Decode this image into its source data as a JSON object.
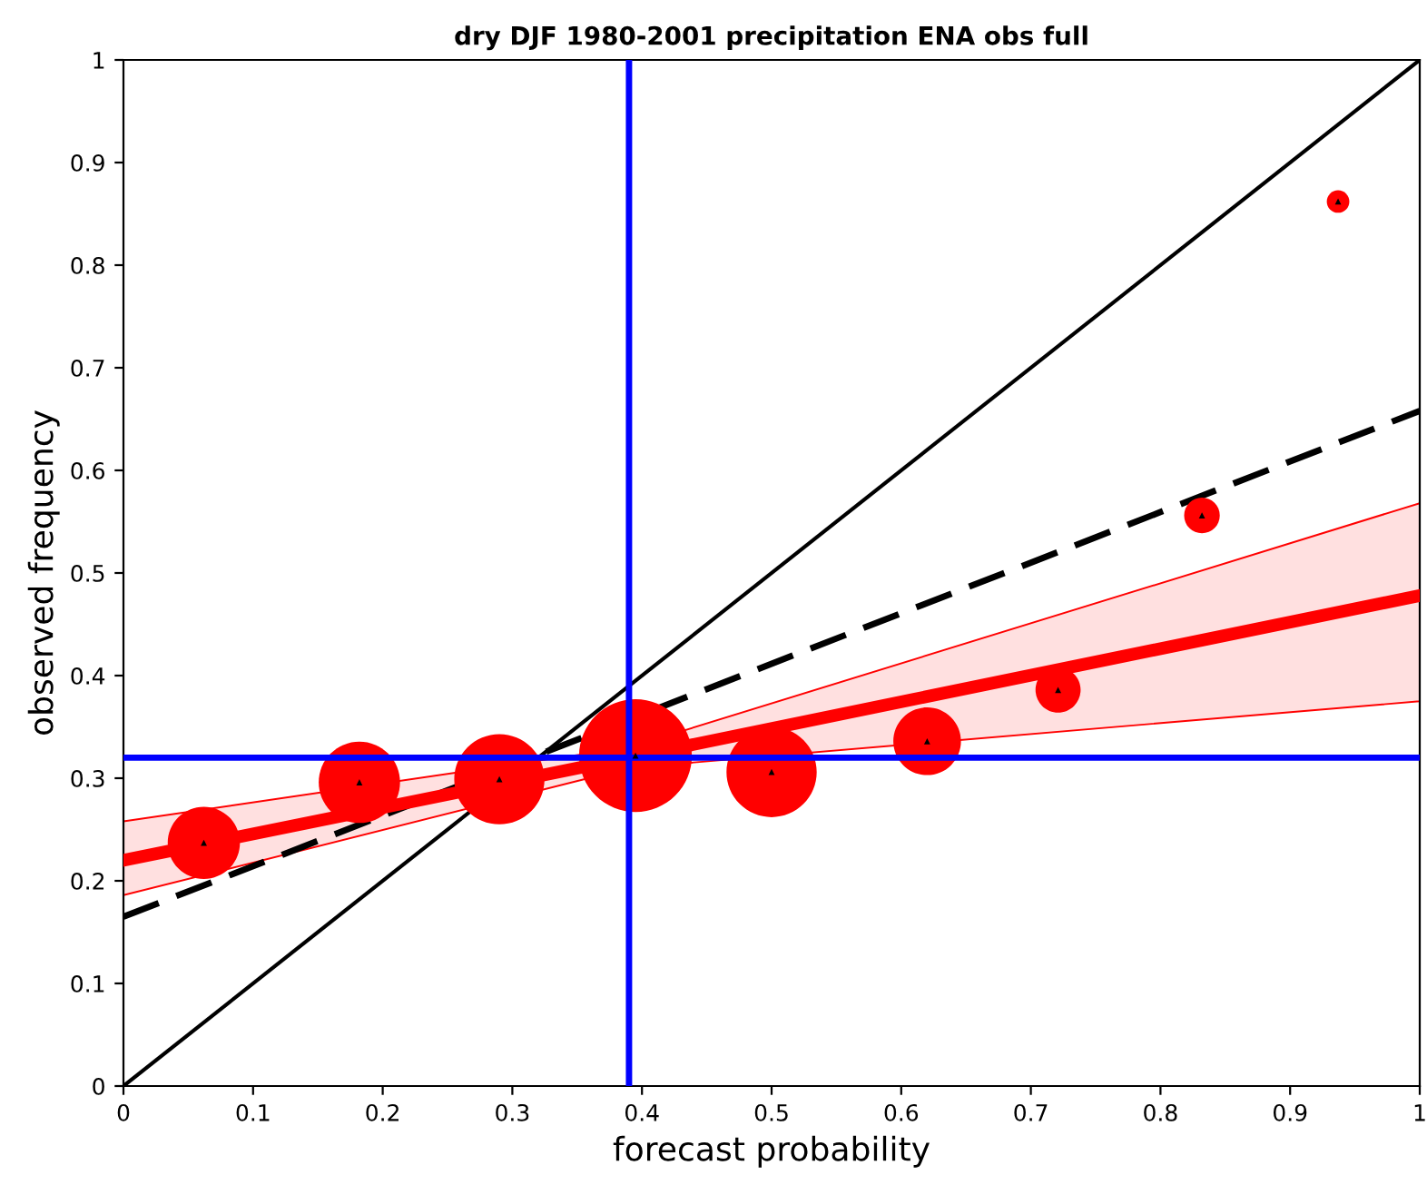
{
  "chart_data": {
    "type": "bubble",
    "title": "dry DJF 1980-2001 precipitation ENA obs full",
    "xlabel": "forecast probability",
    "ylabel": "observed frequency",
    "xlim": [
      0,
      1
    ],
    "ylim": [
      0,
      1
    ],
    "xticks": [
      0,
      0.1,
      0.2,
      0.3,
      0.4,
      0.5,
      0.6,
      0.7,
      0.8,
      0.9,
      1
    ],
    "yticks": [
      0,
      0.1,
      0.2,
      0.3,
      0.4,
      0.5,
      0.6,
      0.7,
      0.8,
      0.9,
      1
    ],
    "grid": false,
    "legend": false,
    "series": [
      {
        "type": "line",
        "color": "#000000",
        "line_style": "solid",
        "x": [
          0,
          1
        ],
        "values": [
          0,
          1
        ]
      },
      {
        "type": "line",
        "color": "#000000",
        "line_style": "dashed",
        "x": [
          0,
          1
        ],
        "values": [
          0.165,
          0.658
        ]
      },
      {
        "type": "line",
        "color": "#ff0000",
        "line_style": "solid",
        "x": [
          0,
          0.39,
          1
        ],
        "values": [
          0.22,
          0.32,
          0.478
        ],
        "lower": [
          0.186,
          0.31,
          0.375
        ],
        "upper": [
          0.258,
          0.33,
          0.568
        ]
      },
      {
        "color": "#ff0000",
        "x": [
          0.062,
          0.182,
          0.29,
          0.395,
          0.5,
          0.62,
          0.721,
          0.832,
          0.937
        ],
        "values": [
          0.237,
          0.296,
          0.299,
          0.322,
          0.306,
          0.336,
          0.386,
          0.556,
          0.862
        ],
        "sizes": [
          0.41,
          0.52,
          0.64,
          1,
          0.64,
          0.36,
          0.16,
          0.1,
          0.04
        ]
      },
      {
        "type": "scatter",
        "color": "#000000",
        "marker": "triangle",
        "x": [
          0.062,
          0.182,
          0.29,
          0.395,
          0.5,
          0.62,
          0.721,
          0.832,
          0.937
        ],
        "values": [
          0.237,
          0.296,
          0.299,
          0.322,
          0.306,
          0.336,
          0.386,
          0.556,
          0.862
        ]
      }
    ],
    "ref_lines": [
      {
        "axis": "x",
        "value": 0.39,
        "color": "#0000ff"
      },
      {
        "axis": "y",
        "value": 0.32,
        "color": "#0000ff"
      }
    ]
  }
}
